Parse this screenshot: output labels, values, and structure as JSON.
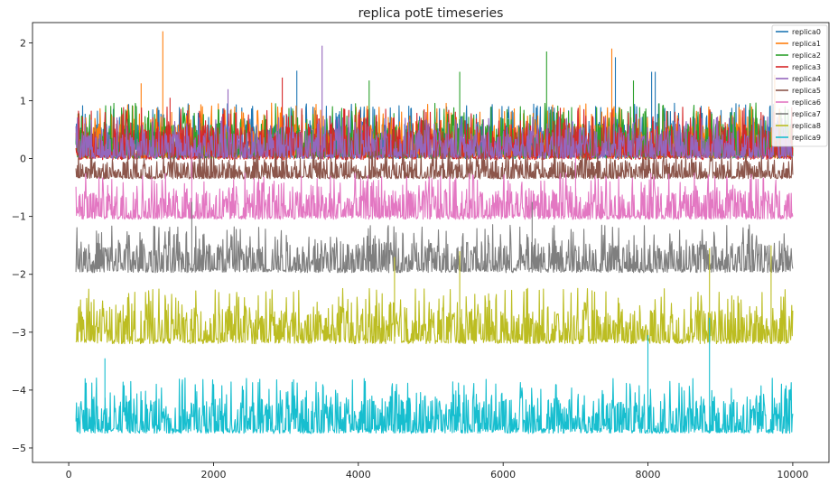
{
  "chart_data": {
    "type": "line",
    "title": "replica potE timeseries",
    "xlabel": "",
    "ylabel": "",
    "xlim": [
      -500,
      10500
    ],
    "ylim": [
      -5.25,
      2.35
    ],
    "x_ticks": [
      0,
      2000,
      4000,
      6000,
      8000,
      10000
    ],
    "y_ticks": [
      -5,
      -4,
      -3,
      -2,
      -1,
      0,
      1,
      2
    ],
    "x_range": [
      100,
      10000
    ],
    "grid": false,
    "legend_position": "upper right",
    "series": [
      {
        "name": "replica0",
        "color": "#1f77b4",
        "baseline": 0.0,
        "typical_top": 0.6,
        "spikes": [
          [
            3150,
            1.52
          ],
          [
            7550,
            1.75
          ],
          [
            8050,
            1.5
          ],
          [
            8100,
            1.5
          ]
        ]
      },
      {
        "name": "replica1",
        "color": "#ff7f0e",
        "baseline": 0.0,
        "typical_top": 0.6,
        "spikes": [
          [
            1300,
            2.2
          ],
          [
            1000,
            1.3
          ],
          [
            7500,
            1.9
          ],
          [
            9750,
            1.45
          ]
        ]
      },
      {
        "name": "replica2",
        "color": "#2ca02c",
        "baseline": 0.0,
        "typical_top": 0.6,
        "spikes": [
          [
            6600,
            1.85
          ],
          [
            5400,
            1.5
          ],
          [
            4150,
            1.35
          ],
          [
            7800,
            1.35
          ]
        ]
      },
      {
        "name": "replica3",
        "color": "#d62728",
        "baseline": -0.02,
        "typical_top": 0.55,
        "spikes": [
          [
            2950,
            1.4
          ],
          [
            1400,
            1.05
          ]
        ]
      },
      {
        "name": "replica4",
        "color": "#9467bd",
        "baseline": 0.0,
        "typical_top": 0.45,
        "spikes": [
          [
            3500,
            1.95
          ],
          [
            2200,
            1.2
          ]
        ]
      },
      {
        "name": "replica5",
        "color": "#8c564b",
        "baseline": -0.35,
        "typical_top": -0.05,
        "spikes": [
          [
            1800,
            0.1
          ]
        ]
      },
      {
        "name": "replica6",
        "color": "#e377c2",
        "baseline": -1.05,
        "typical_top": -0.55,
        "spikes": [
          [
            1700,
            0.2
          ],
          [
            7000,
            0.1
          ]
        ]
      },
      {
        "name": "replica7",
        "color": "#7f7f7f",
        "baseline": -1.97,
        "typical_top": -1.45,
        "spikes": [
          [
            1700,
            -0.75
          ],
          [
            6400,
            -0.75
          ]
        ]
      },
      {
        "name": "replica8",
        "color": "#bcbd22",
        "baseline": -3.2,
        "typical_top": -2.6,
        "spikes": [
          [
            8850,
            -1.55
          ],
          [
            5400,
            -1.6
          ],
          [
            9700,
            -1.5
          ],
          [
            4500,
            -1.7
          ]
        ]
      },
      {
        "name": "replica9",
        "color": "#17becf",
        "baseline": -4.75,
        "typical_top": -4.15,
        "spikes": [
          [
            8850,
            -2.75
          ],
          [
            8000,
            -3.05
          ],
          [
            500,
            -3.45
          ]
        ]
      }
    ]
  }
}
